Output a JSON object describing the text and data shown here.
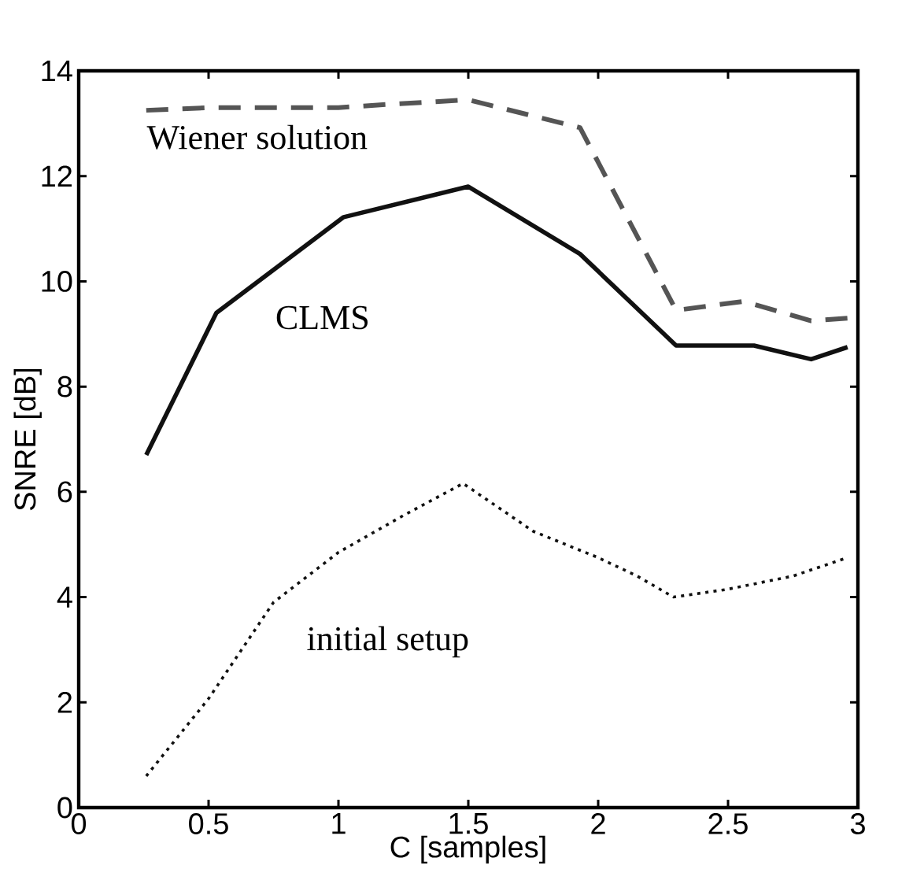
{
  "chart_data": {
    "type": "line",
    "xlabel": "C [samples]",
    "ylabel": "SNRE [dB]",
    "xlim": [
      0,
      3
    ],
    "ylim": [
      0,
      14
    ],
    "xticks": [
      0,
      0.5,
      1,
      1.5,
      2,
      2.5,
      3
    ],
    "yticks": [
      0,
      2,
      4,
      6,
      8,
      10,
      12,
      14
    ],
    "series": [
      {
        "color": "#555555",
        "line_style": "dashed",
        "x": [
          0.26,
          0.5,
          1.0,
          1.15,
          1.5,
          1.93,
          2.3,
          2.56,
          2.82,
          2.96
        ],
        "values": [
          13.25,
          13.3,
          13.3,
          13.35,
          13.45,
          12.92,
          9.45,
          9.62,
          9.25,
          9.3
        ]
      },
      {
        "color": "#111111",
        "line_style": "solid",
        "x": [
          0.26,
          0.53,
          1.02,
          1.5,
          1.93,
          2.3,
          2.6,
          2.82,
          2.96
        ],
        "values": [
          6.7,
          9.4,
          11.22,
          11.8,
          10.52,
          8.78,
          8.78,
          8.52,
          8.75
        ]
      },
      {
        "color": "#111111",
        "line_style": "dotted",
        "x": [
          0.26,
          0.5,
          0.75,
          1.0,
          1.25,
          1.48,
          1.75,
          2.0,
          2.15,
          2.29,
          2.5,
          2.75,
          2.96
        ],
        "values": [
          0.6,
          2.07,
          3.9,
          4.85,
          5.55,
          6.16,
          5.25,
          4.75,
          4.4,
          4.0,
          4.15,
          4.4,
          4.75
        ]
      }
    ],
    "annotations": [
      "Wiener solution",
      "CLMS",
      "initial setup"
    ]
  }
}
